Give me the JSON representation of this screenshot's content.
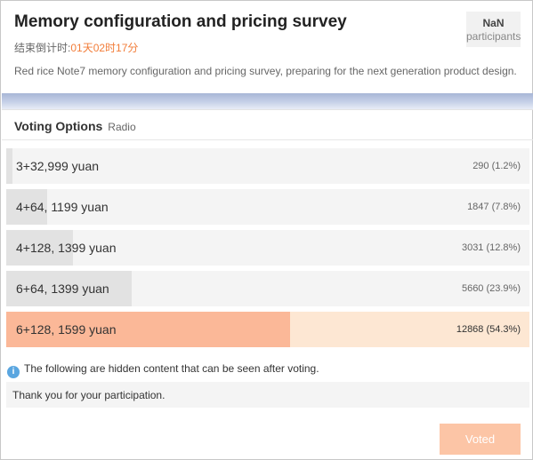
{
  "header": {
    "title": "Memory configuration and pricing survey",
    "countdown_label": "结束倒计时:",
    "countdown_value": "01天02时17分",
    "participants_count": "NaN",
    "participants_label": "participants",
    "description": "Red rice Note7 memory configuration and pricing survey, preparing for the next generation product design."
  },
  "voting": {
    "title": "Voting Options",
    "type": "Radio",
    "options": [
      {
        "label": "3+32,999 yuan",
        "count_text": "290 (1.2%)",
        "percent": 1.2,
        "selected": false
      },
      {
        "label": "4+64, 1199 yuan",
        "count_text": "1847 (7.8%)",
        "percent": 7.8,
        "selected": false
      },
      {
        "label": "4+128, 1399 yuan",
        "count_text": "3031 (12.8%)",
        "percent": 12.8,
        "selected": false
      },
      {
        "label": "6+64, 1399 yuan",
        "count_text": "5660 (23.9%)",
        "percent": 23.9,
        "selected": false
      },
      {
        "label": "6+128, 1599 yuan",
        "count_text": "12868 (54.3%)",
        "percent": 54.3,
        "selected": true
      }
    ]
  },
  "hidden_notice": "The following are hidden content that can be seen after voting.",
  "hidden_content": "Thank you for your participation.",
  "button": {
    "label": "Voted"
  },
  "colors": {
    "accent": "#f27c38",
    "bar_fill": "#e2e2e2",
    "selected_fill": "#fbb898",
    "selected_bg": "#fde7d3",
    "button_bg": "#fcc5a6",
    "info_icon": "#5aa6e0"
  },
  "icons": {
    "info": "info-icon"
  }
}
